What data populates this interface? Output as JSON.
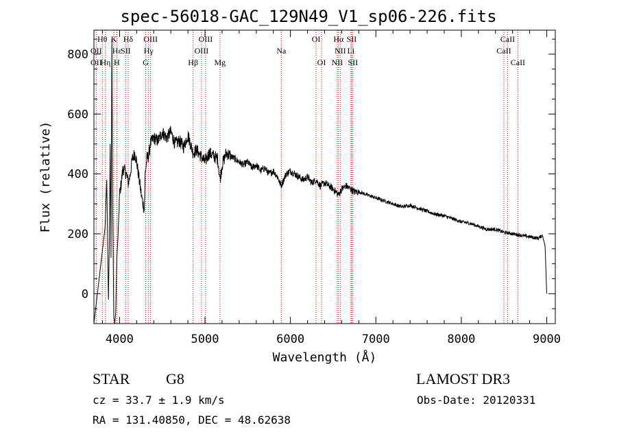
{
  "chart_data": {
    "type": "line",
    "title": "spec-56018-GAC_129N49_V1_sp06-226.fits",
    "xlabel": "Wavelength (Å)",
    "ylabel": "Flux (relative)",
    "xlim": [
      3700,
      9100
    ],
    "ylim": [
      -100,
      880
    ],
    "x_ticks": [
      4000,
      5000,
      6000,
      7000,
      8000,
      9000
    ],
    "y_ticks": [
      0,
      200,
      400,
      600,
      800
    ],
    "grid": false,
    "series": [
      {
        "name": "flux",
        "x": [
          3700,
          3830,
          3850,
          3870,
          3880,
          3890,
          3900,
          3910,
          3920,
          3933,
          3945,
          3955,
          3968,
          3980,
          4000,
          4020,
          4040,
          4060,
          4080,
          4101,
          4120,
          4150,
          4180,
          4200,
          4230,
          4260,
          4290,
          4300,
          4320,
          4340,
          4360,
          4400,
          4450,
          4500,
          4550,
          4600,
          4650,
          4700,
          4750,
          4800,
          4861,
          4900,
          4950,
          5000,
          5050,
          5100,
          5150,
          5175,
          5200,
          5250,
          5300,
          5350,
          5400,
          5450,
          5500,
          5550,
          5600,
          5650,
          5700,
          5750,
          5800,
          5850,
          5890,
          5950,
          6000,
          6050,
          6100,
          6150,
          6200,
          6250,
          6300,
          6350,
          6400,
          6450,
          6500,
          6563,
          6600,
          6650,
          6700,
          6750,
          6800,
          6900,
          7000,
          7100,
          7200,
          7300,
          7400,
          7500,
          7600,
          7700,
          7800,
          7900,
          8000,
          8100,
          8200,
          8300,
          8400,
          8500,
          8600,
          8700,
          8800,
          8900,
          8950,
          8980,
          9000
        ],
        "y": [
          -100,
          220,
          380,
          -20,
          160,
          500,
          120,
          850,
          300,
          -80,
          -100,
          -60,
          120,
          180,
          330,
          370,
          420,
          410,
          400,
          370,
          390,
          450,
          470,
          440,
          380,
          320,
          280,
          400,
          450,
          460,
          500,
          520,
          510,
          540,
          520,
          540,
          500,
          510,
          490,
          530,
          470,
          480,
          460,
          440,
          470,
          460,
          450,
          380,
          430,
          470,
          460,
          450,
          440,
          430,
          440,
          420,
          430,
          410,
          420,
          400,
          410,
          390,
          360,
          400,
          410,
          400,
          390,
          380,
          390,
          370,
          380,
          360,
          370,
          360,
          350,
          330,
          350,
          360,
          350,
          340,
          340,
          330,
          320,
          310,
          300,
          290,
          295,
          285,
          275,
          265,
          260,
          250,
          240,
          235,
          225,
          215,
          215,
          205,
          200,
          195,
          190,
          185,
          195,
          160,
          0
        ]
      }
    ],
    "line_markers": {
      "row1": [
        {
          "label": "Hθ",
          "wl": 3798
        },
        {
          "label": "K",
          "wl": 3933
        },
        {
          "label": "Hδ",
          "wl": 4101
        },
        {
          "label": "OIII",
          "wl": 4363
        },
        {
          "label": "OIII",
          "wl": 5007
        },
        {
          "label": "OI",
          "wl": 6300
        },
        {
          "label": "Hα",
          "wl": 6563
        },
        {
          "label": "SII",
          "wl": 6716
        },
        {
          "label": "CaII",
          "wl": 8542
        }
      ],
      "row2": [
        {
          "label": "OII",
          "wl": 3727
        },
        {
          "label": "Hε",
          "wl": 3970
        },
        {
          "label": "SII",
          "wl": 4072
        },
        {
          "label": "Hγ",
          "wl": 4340
        },
        {
          "label": "OIII",
          "wl": 4959
        },
        {
          "label": "Na",
          "wl": 5893
        },
        {
          "label": "NII",
          "wl": 6583
        },
        {
          "label": "Li",
          "wl": 6708
        },
        {
          "label": "CaII",
          "wl": 8498
        }
      ],
      "row3": [
        {
          "label": "OII",
          "wl": 3727
        },
        {
          "label": "Hη",
          "wl": 3835
        },
        {
          "label": "H",
          "wl": 3968
        },
        {
          "label": "G",
          "wl": 4305
        },
        {
          "label": "Hβ",
          "wl": 4861
        },
        {
          "label": "Mg",
          "wl": 5175
        },
        {
          "label": "OI",
          "wl": 6364
        },
        {
          "label": "NII",
          "wl": 6548
        },
        {
          "label": "SII",
          "wl": 6731
        },
        {
          "label": "CaII",
          "wl": 8662
        }
      ]
    }
  },
  "info": {
    "class_label": "STAR",
    "subclass": "G8",
    "survey": "LAMOST DR3",
    "velocity": "cz = 33.7 ± 1.9 km/s",
    "obs_date": "Obs-Date: 20120331",
    "coords": "RA = 131.40850, DEC =  48.62638"
  },
  "colors": {
    "axis": "#000000",
    "spectrum": "#000000",
    "marker_line": "#cc0000"
  }
}
